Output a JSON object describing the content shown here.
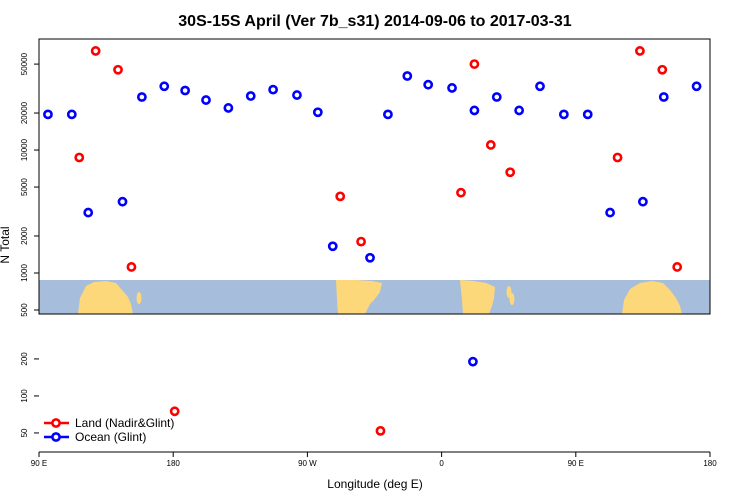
{
  "chart_data": {
    "type": "scatter",
    "title": "30S-15S April (Ver 7b_s31)   2014-09-06 to 2017-03-31",
    "xlabel": "Longitude (deg E)",
    "ylabel": "N Total",
    "x_ticks": [
      {
        "lon": 90,
        "label": "90 E"
      },
      {
        "lon": 180,
        "label": "180"
      },
      {
        "lon": 270,
        "label": "90 W"
      },
      {
        "lon": 360,
        "label": "0"
      },
      {
        "lon": 450,
        "label": "90 E"
      },
      {
        "lon": 540,
        "label": "180"
      }
    ],
    "xlim": [
      90,
      540
    ],
    "y_scale": "log",
    "ylim": [
      35,
      80000
    ],
    "y_ticks": [
      50,
      100,
      200,
      500,
      1000,
      2000,
      5000,
      10000,
      20000,
      50000
    ],
    "y_tick_labels": [
      "50",
      "100",
      "200",
      "500",
      "1000",
      "2000",
      "5000",
      "10000",
      "20000",
      "50000"
    ],
    "grid": false,
    "legend_position": "bottom-left",
    "series": [
      {
        "name": "Land (Nadir&Glint)",
        "color": "#ff0000",
        "points": [
          {
            "x": 117,
            "y": 8700
          },
          {
            "x": 128,
            "y": 64000
          },
          {
            "x": 143,
            "y": 45000
          },
          {
            "x": 152,
            "y": 1120
          },
          {
            "x": 181,
            "y": 75
          },
          {
            "x": 292,
            "y": 4200
          },
          {
            "x": 306,
            "y": 1800
          },
          {
            "x": 319,
            "y": 52
          },
          {
            "x": 373,
            "y": 4500
          },
          {
            "x": 382,
            "y": 50000
          },
          {
            "x": 393,
            "y": 11000
          },
          {
            "x": 406,
            "y": 6600
          },
          {
            "x": 478,
            "y": 8700
          },
          {
            "x": 493,
            "y": 64000
          },
          {
            "x": 508,
            "y": 45000
          },
          {
            "x": 518,
            "y": 1120
          }
        ]
      },
      {
        "name": "Ocean (Glint)",
        "color": "#0000ff",
        "points": [
          {
            "x": 96,
            "y": 19500
          },
          {
            "x": 112,
            "y": 19500
          },
          {
            "x": 123,
            "y": 3100
          },
          {
            "x": 146,
            "y": 3800
          },
          {
            "x": 159,
            "y": 27000
          },
          {
            "x": 174,
            "y": 33000
          },
          {
            "x": 188,
            "y": 30500
          },
          {
            "x": 202,
            "y": 25500
          },
          {
            "x": 217,
            "y": 22000
          },
          {
            "x": 232,
            "y": 27500
          },
          {
            "x": 247,
            "y": 31000
          },
          {
            "x": 263,
            "y": 28000
          },
          {
            "x": 277,
            "y": 20300
          },
          {
            "x": 287,
            "y": 1650
          },
          {
            "x": 312,
            "y": 1330
          },
          {
            "x": 324,
            "y": 19500
          },
          {
            "x": 337,
            "y": 40000
          },
          {
            "x": 351,
            "y": 34000
          },
          {
            "x": 367,
            "y": 32000
          },
          {
            "x": 381,
            "y": 190
          },
          {
            "x": 382,
            "y": 21000
          },
          {
            "x": 397,
            "y": 27000
          },
          {
            "x": 412,
            "y": 21000
          },
          {
            "x": 426,
            "y": 33000
          },
          {
            "x": 442,
            "y": 19500
          },
          {
            "x": 458,
            "y": 19500
          },
          {
            "x": 473,
            "y": 3100
          },
          {
            "x": 495,
            "y": 3800
          },
          {
            "x": 509,
            "y": 27000
          },
          {
            "x": 531,
            "y": 33000
          }
        ]
      }
    ]
  },
  "colors": {
    "ocean": "#a6bddb",
    "land": "#fdd87a",
    "axis": "#000000"
  }
}
